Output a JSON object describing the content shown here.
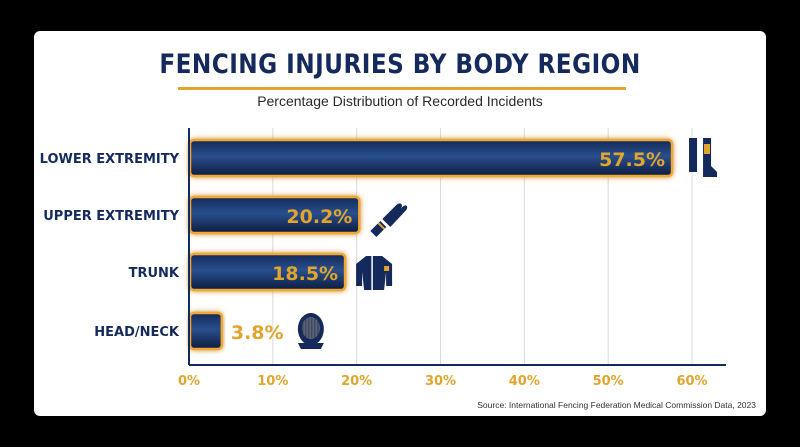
{
  "title": "FENCING INJURIES BY BODY REGION",
  "subtitle": "Percentage Distribution of Recorded Incidents",
  "source": "Source: International Fencing Federation Medical Commission Data, 2023",
  "colors": {
    "bar_dark": "#0f2147",
    "bar_light": "#2a4f8c",
    "glow": "#f0a830",
    "accent": "#e0a52e",
    "navy": "#142a5c"
  },
  "chart_data": {
    "type": "bar",
    "orientation": "horizontal",
    "categories": [
      "LOWER EXTREMITY",
      "UPPER EXTREMITY",
      "TRUNK",
      "HEAD/NECK"
    ],
    "values": [
      57.5,
      20.2,
      18.5,
      3.8
    ],
    "value_labels": [
      "57.5%",
      "20.2%",
      "18.5%",
      "3.8%"
    ],
    "icons": [
      "leg-boot-icon",
      "glove-icon",
      "jacket-icon",
      "mask-icon"
    ],
    "xlim": [
      0,
      60
    ],
    "xticks": [
      0,
      10,
      20,
      30,
      40,
      50,
      60
    ],
    "xtick_labels": [
      "0%",
      "10%",
      "20%",
      "30%",
      "40%",
      "50%",
      "60%"
    ],
    "grid": true
  }
}
